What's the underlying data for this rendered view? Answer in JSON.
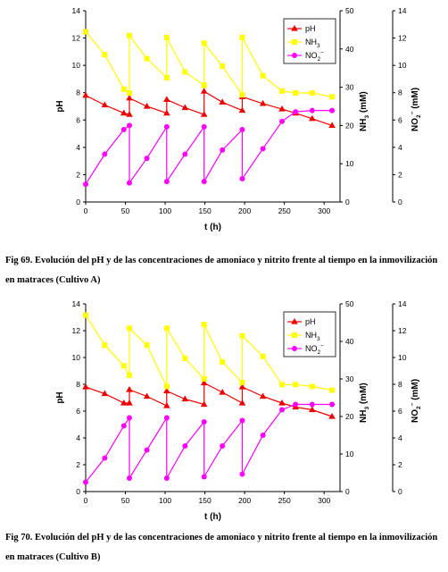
{
  "chart_data": [
    {
      "type": "line",
      "title": "",
      "caption": "Fig 69. Evolución del pH y de las concentraciones de amoniaco y nitrito frente al tiempo en la inmovilización en matraces (Cultivo A)",
      "xlabel": "t (h)",
      "ylabel": "pH",
      "y2label": "NH3 (mM)",
      "y3label": "NO2- (mM)",
      "xlim": [
        0,
        320
      ],
      "ylim": [
        0,
        14
      ],
      "y2lim": [
        0,
        50
      ],
      "y3lim": [
        0,
        14
      ],
      "xticks": [
        0,
        50,
        100,
        150,
        200,
        250,
        300
      ],
      "yticks": [
        0,
        2,
        4,
        6,
        8,
        10,
        12,
        14
      ],
      "y2ticks": [
        0,
        10,
        20,
        30,
        40,
        50
      ],
      "y3ticks": [
        0,
        2,
        4,
        6,
        8,
        10,
        12,
        14
      ],
      "legend_position": "top-right",
      "grid": false,
      "series": [
        {
          "name": "pH",
          "axis": "pH",
          "color": "#ee0000",
          "marker": "triangle",
          "x": [
            0,
            24,
            48,
            55,
            55,
            77,
            102,
            102,
            125,
            149,
            149,
            172,
            197,
            197,
            223,
            247,
            264,
            285,
            310
          ],
          "y": [
            7.8,
            7.1,
            6.5,
            6.4,
            7.6,
            7.0,
            6.5,
            7.5,
            6.9,
            6.4,
            8.1,
            7.3,
            6.7,
            7.7,
            7.2,
            6.8,
            6.5,
            6.1,
            5.6
          ]
        },
        {
          "name": "NH3",
          "axis": "NH3 (mM)",
          "color": "#ffff00",
          "marker": "square",
          "x": [
            0,
            24,
            48,
            55,
            55,
            77,
            102,
            102,
            125,
            149,
            149,
            172,
            197,
            197,
            223,
            247,
            264,
            285,
            310
          ],
          "y": [
            44.5,
            38.5,
            29.5,
            28.5,
            43.5,
            37.5,
            32.5,
            43.0,
            34.0,
            30.5,
            41.5,
            35.5,
            28.0,
            43.0,
            33.0,
            29.0,
            28.5,
            28.5,
            27.5
          ]
        },
        {
          "name": "NO2-",
          "axis": "NO2- (mM)",
          "color": "#ff00ff",
          "marker": "circle",
          "x": [
            0,
            24,
            48,
            55,
            55,
            77,
            102,
            102,
            125,
            149,
            149,
            172,
            197,
            197,
            223,
            247,
            264,
            285,
            310
          ],
          "y": [
            1.3,
            3.5,
            5.3,
            5.6,
            1.4,
            3.2,
            5.5,
            1.5,
            3.5,
            5.5,
            1.5,
            3.8,
            5.3,
            1.7,
            3.9,
            5.9,
            6.6,
            6.7,
            6.7
          ]
        }
      ]
    },
    {
      "type": "line",
      "title": "",
      "caption": "Fig 70. Evolución del pH y de las concentraciones de amoniaco y nitrito frente al tiempo en la inmovilización en matraces (Cultivo B)",
      "xlabel": "t (h)",
      "ylabel": "pH",
      "y2label": "NH3 (mM)",
      "y3label": "NO2- (mM)",
      "xlim": [
        0,
        320
      ],
      "ylim": [
        0,
        14
      ],
      "y2lim": [
        0,
        50
      ],
      "y3lim": [
        0,
        14
      ],
      "xticks": [
        0,
        50,
        100,
        150,
        200,
        250,
        300
      ],
      "yticks": [
        0,
        2,
        4,
        6,
        8,
        10,
        12,
        14
      ],
      "y2ticks": [
        0,
        10,
        20,
        30,
        40,
        50
      ],
      "y3ticks": [
        0,
        2,
        4,
        6,
        8,
        10,
        12,
        14
      ],
      "legend_position": "top-right",
      "grid": false,
      "series": [
        {
          "name": "pH",
          "axis": "pH",
          "color": "#ee0000",
          "marker": "triangle",
          "x": [
            0,
            24,
            48,
            55,
            55,
            77,
            102,
            102,
            125,
            149,
            149,
            172,
            197,
            197,
            223,
            247,
            264,
            285,
            310
          ],
          "y": [
            7.8,
            7.3,
            6.6,
            6.6,
            7.6,
            7.1,
            6.4,
            7.5,
            6.9,
            6.5,
            8.1,
            7.4,
            6.6,
            7.8,
            7.1,
            6.6,
            6.3,
            6.1,
            5.6
          ]
        },
        {
          "name": "NH3",
          "axis": "NH3 (mM)",
          "color": "#ffff00",
          "marker": "square",
          "x": [
            0,
            24,
            48,
            55,
            55,
            77,
            102,
            102,
            125,
            149,
            149,
            172,
            197,
            197,
            223,
            247,
            264,
            285,
            310
          ],
          "y": [
            47.0,
            39.0,
            33.5,
            31.0,
            43.5,
            39.0,
            28.0,
            43.5,
            35.5,
            30.0,
            44.5,
            34.5,
            29.0,
            41.5,
            36.0,
            28.5,
            28.5,
            28.0,
            27.0
          ]
        },
        {
          "name": "NO2-",
          "axis": "NO2- (mM)",
          "color": "#ff00ff",
          "marker": "circle",
          "x": [
            0,
            24,
            48,
            55,
            55,
            77,
            102,
            102,
            125,
            149,
            149,
            172,
            197,
            197,
            223,
            247,
            264,
            285,
            310
          ],
          "y": [
            0.7,
            2.5,
            4.9,
            5.5,
            1.0,
            3.1,
            5.5,
            1.0,
            3.4,
            5.2,
            1.1,
            3.4,
            5.3,
            1.3,
            4.2,
            6.1,
            6.5,
            6.5,
            6.5
          ]
        }
      ]
    }
  ]
}
